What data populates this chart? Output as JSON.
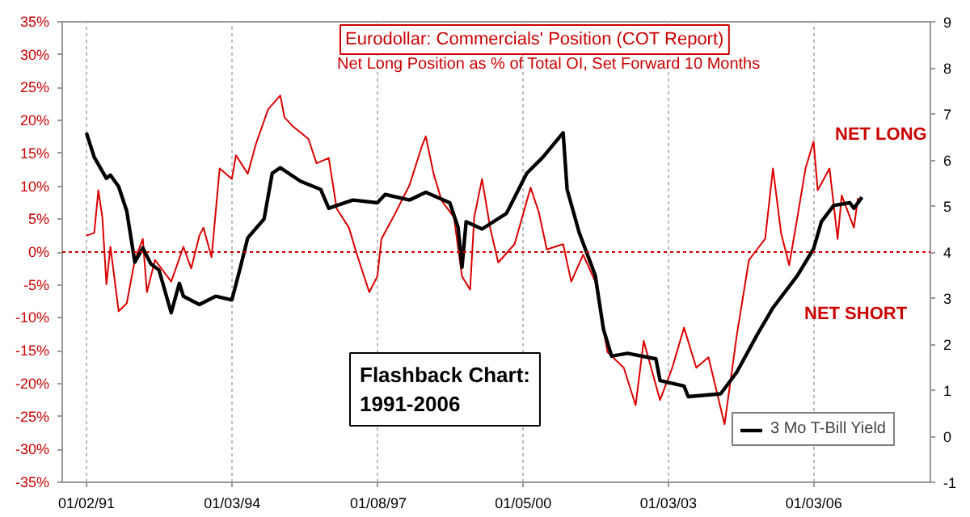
{
  "chart_data": {
    "type": "line",
    "title": "Eurodollar: Commercials' Position (COT Report)",
    "subtitle": "Net Long Position as % of Total OI, Set Forward 10 Months",
    "annotations": [
      "NET LONG",
      "NET SHORT",
      "Flashback Chart:\n1991-2006"
    ],
    "xlim": [
      "1990-07-03",
      "2008-05-30"
    ],
    "xticks": [
      {
        "value": "1991-01-02",
        "label": "01/02/91"
      },
      {
        "value": "1994-01-03",
        "label": "01/03/94"
      },
      {
        "value": "1997-01-08",
        "label": "01/08/97"
      },
      {
        "value": "2000-01-05",
        "label": "01/05/00"
      },
      {
        "value": "2003-01-03",
        "label": "01/03/03"
      },
      {
        "value": "2006-01-03",
        "label": "01/03/06"
      }
    ],
    "ylim": [
      -35,
      35
    ],
    "yticks": [
      {
        "value": -35,
        "label": "-35%"
      },
      {
        "value": -30,
        "label": "-30%"
      },
      {
        "value": -25,
        "label": "-25%"
      },
      {
        "value": -20,
        "label": "-20%"
      },
      {
        "value": -15,
        "label": "-15%"
      },
      {
        "value": -10,
        "label": "-10%"
      },
      {
        "value": -5,
        "label": "-5%"
      },
      {
        "value": 0,
        "label": "0%"
      },
      {
        "value": 5,
        "label": "5%"
      },
      {
        "value": 10,
        "label": "10%"
      },
      {
        "value": 15,
        "label": "15%"
      },
      {
        "value": 20,
        "label": "20%"
      },
      {
        "value": 25,
        "label": "25%"
      },
      {
        "value": 30,
        "label": "30%"
      },
      {
        "value": 35,
        "label": "35%"
      }
    ],
    "y2lim": [
      -1,
      9
    ],
    "y2ticks": [
      -1,
      0,
      1,
      2,
      3,
      4,
      5,
      6,
      7,
      8,
      9
    ],
    "grid": "x",
    "legend": "bottom right",
    "ref_lines": [
      {
        "axis": "y",
        "value": 0,
        "color": "#cc0000",
        "line_style": "dotted"
      }
    ],
    "series": [
      {
        "color": "#dd0000",
        "x": [
          "1991-01",
          "1991-03",
          "1991-04",
          "1991-05",
          "1991-06",
          "1991-07",
          "1991-09",
          "1991-11",
          "1992-01",
          "1992-03",
          "1992-04",
          "1992-06",
          "1992-10",
          "1993-01",
          "1993-03",
          "1993-05",
          "1993-06",
          "1993-08",
          "1993-10",
          "1994-01",
          "1994-02",
          "1994-05",
          "1994-07",
          "1994-10",
          "1995-01",
          "1995-02",
          "1995-04",
          "1995-08",
          "1995-10",
          "1996-01",
          "1996-03",
          "1996-06",
          "1996-08",
          "1996-11",
          "1997-01",
          "1997-02",
          "1997-05",
          "1997-09",
          "1997-12",
          "1998-01",
          "1998-03",
          "1998-05",
          "1998-08",
          "1998-10",
          "1998-12",
          "1999-01",
          "1999-03",
          "1999-05",
          "1999-07",
          "1999-11",
          "2000-03",
          "2000-05",
          "2000-07",
          "2000-11",
          "2001-01",
          "2001-04",
          "2001-07",
          "2001-10",
          "2002-02",
          "2002-05",
          "2002-07",
          "2002-11",
          "2003-02",
          "2003-05",
          "2003-08",
          "2003-11",
          "2004-03",
          "2004-06",
          "2004-09",
          "2004-11",
          "2005-01",
          "2005-03",
          "2005-05",
          "2005-07",
          "2005-09",
          "2005-11",
          "2006-01",
          "2006-02",
          "2006-05",
          "2006-07",
          "2006-08",
          "2006-11",
          "2006-12"
        ],
        "values": [
          2.5,
          2.9,
          9.4,
          5.3,
          -4.9,
          0.8,
          -9.0,
          -7.8,
          -1.2,
          2.0,
          -6.1,
          -1.2,
          -4.5,
          0.8,
          -2.5,
          2.5,
          3.7,
          -0.8,
          12.7,
          11.1,
          14.7,
          11.9,
          16.4,
          21.7,
          23.8,
          20.5,
          19.2,
          17.2,
          13.5,
          14.3,
          6.6,
          3.7,
          -0.4,
          -6.1,
          -3.7,
          2.0,
          5.3,
          10.2,
          16.0,
          17.6,
          11.9,
          7.8,
          5.3,
          -3.7,
          -5.7,
          5.3,
          11.1,
          3.7,
          -1.6,
          1.2,
          9.8,
          6.1,
          0.4,
          1.2,
          -4.5,
          -0.4,
          -4.5,
          -15.2,
          -17.6,
          -23.3,
          -13.5,
          -22.5,
          -17.6,
          -11.5,
          -17.6,
          -16.0,
          -26.2,
          -12.7,
          -1.2,
          0.4,
          2.0,
          12.7,
          2.9,
          -2.0,
          5.3,
          12.7,
          16.8,
          9.4,
          12.7,
          2.0,
          8.6,
          3.7,
          8.2
        ]
      },
      {
        "name": "3 Mo T-Bill Yield",
        "color": "#000000",
        "axis": "y2",
        "x": [
          "1991-01",
          "1991-03",
          "1991-06",
          "1991-07",
          "1991-09",
          "1991-11",
          "1992-01",
          "1992-03",
          "1992-05",
          "1992-07",
          "1992-10",
          "1992-12",
          "1993-01",
          "1993-05",
          "1993-09",
          "1994-01",
          "1994-03",
          "1994-05",
          "1994-09",
          "1994-11",
          "1995-01",
          "1995-06",
          "1995-11",
          "1996-01",
          "1996-03",
          "1996-07",
          "1997-01",
          "1997-03",
          "1997-09",
          "1998-01",
          "1998-07",
          "1998-09",
          "1998-10",
          "1998-11",
          "1999-03",
          "1999-09",
          "2000-02",
          "2000-06",
          "2000-11",
          "2000-12",
          "2001-03",
          "2001-07",
          "2001-09",
          "2001-11",
          "2002-03",
          "2002-10",
          "2002-11",
          "2003-05",
          "2003-06",
          "2004-02",
          "2004-06",
          "2004-11",
          "2005-03",
          "2005-09",
          "2006-01",
          "2006-03",
          "2006-06",
          "2006-10",
          "2006-11",
          "2007-01"
        ],
        "values": [
          6.59,
          6.06,
          5.6,
          5.67,
          5.42,
          4.89,
          3.78,
          4.09,
          3.74,
          3.61,
          2.68,
          3.32,
          3.04,
          2.86,
          3.04,
          2.96,
          3.61,
          4.31,
          4.72,
          5.71,
          5.83,
          5.54,
          5.36,
          4.95,
          5.01,
          5.13,
          5.07,
          5.25,
          5.13,
          5.3,
          5.07,
          4.54,
          3.67,
          4.66,
          4.5,
          4.84,
          5.71,
          6.06,
          6.59,
          5.36,
          4.43,
          3.49,
          2.32,
          1.74,
          1.8,
          1.68,
          1.21,
          1.09,
          0.86,
          0.92,
          1.39,
          2.2,
          2.79,
          3.49,
          4.07,
          4.66,
          5.01,
          5.07,
          4.95,
          5.19
        ]
      }
    ]
  }
}
